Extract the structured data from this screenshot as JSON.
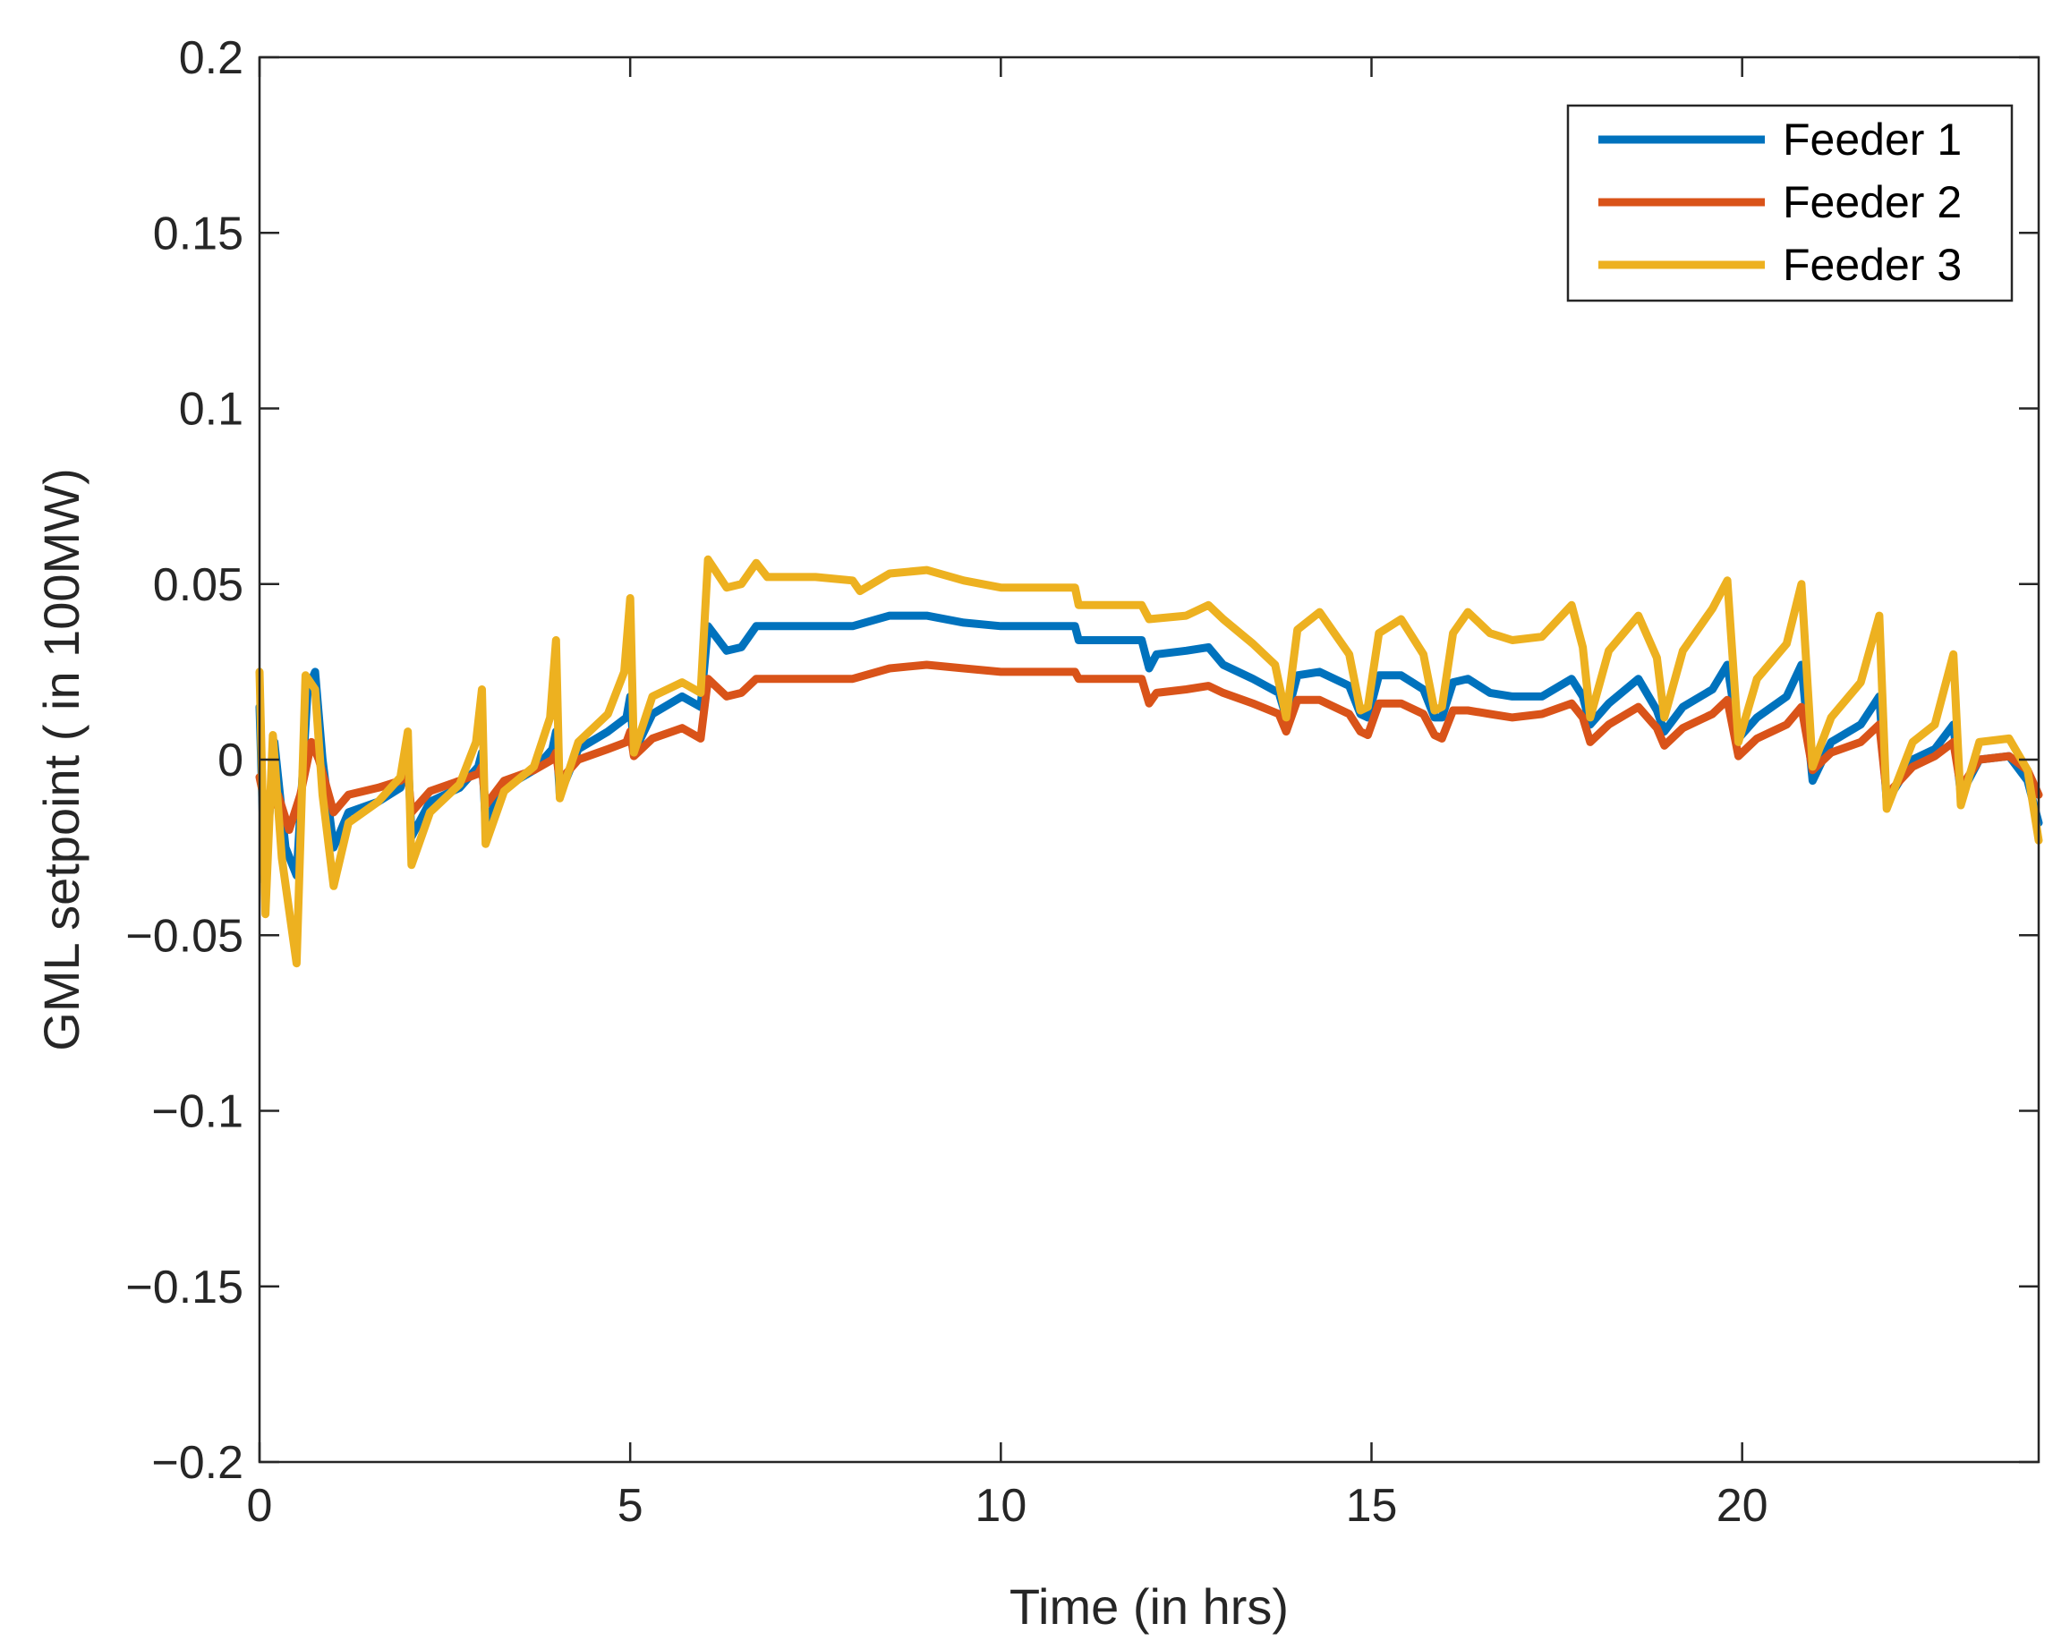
{
  "chart_data": {
    "type": "line",
    "title": "",
    "xlabel": "Time (in hrs)",
    "ylabel": "GML setpoint ( in 100MW)",
    "xlim": [
      0,
      24
    ],
    "ylim": [
      -0.2,
      0.2
    ],
    "xticks": [
      0,
      5,
      10,
      15,
      20
    ],
    "xtick_labels": [
      "0",
      "5",
      "10",
      "15",
      "20"
    ],
    "yticks": [
      0.2,
      0.15,
      0.1,
      0.05,
      0,
      -0.05,
      -0.1,
      -0.15,
      -0.2
    ],
    "ytick_labels": [
      "0.2",
      "0.15",
      "0.1",
      "0.05",
      "0",
      "−0.05",
      "−0.1",
      "−0.15",
      "−0.2"
    ],
    "grid": false,
    "legend_position": "top-right",
    "series": [
      {
        "name": "Feeder 1",
        "color": "#0072BD",
        "points": [
          [
            0,
            0.015
          ],
          [
            0.07,
            -0.035
          ],
          [
            0.2,
            0.005
          ],
          [
            0.35,
            -0.025
          ],
          [
            0.5,
            -0.033
          ],
          [
            0.65,
            0.02
          ],
          [
            0.75,
            0.025
          ],
          [
            0.85,
            0.0
          ],
          [
            1.0,
            -0.025
          ],
          [
            1.2,
            -0.015
          ],
          [
            1.6,
            -0.012
          ],
          [
            1.9,
            -0.008
          ],
          [
            2.0,
            0.002
          ],
          [
            2.05,
            -0.022
          ],
          [
            2.3,
            -0.012
          ],
          [
            2.7,
            -0.008
          ],
          [
            2.95,
            -0.002
          ],
          [
            3.0,
            0.002
          ],
          [
            3.05,
            -0.018
          ],
          [
            3.3,
            -0.008
          ],
          [
            3.7,
            -0.003
          ],
          [
            3.95,
            0.003
          ],
          [
            4.0,
            0.008
          ],
          [
            4.05,
            -0.01
          ],
          [
            4.3,
            0.003
          ],
          [
            4.7,
            0.008
          ],
          [
            4.95,
            0.012
          ],
          [
            5.0,
            0.018
          ],
          [
            5.05,
            0.002
          ],
          [
            5.3,
            0.013
          ],
          [
            5.7,
            0.018
          ],
          [
            5.95,
            0.015
          ],
          [
            6.05,
            0.038
          ],
          [
            6.3,
            0.031
          ],
          [
            6.5,
            0.032
          ],
          [
            6.7,
            0.038
          ],
          [
            7.5,
            0.038
          ],
          [
            8.0,
            0.038
          ],
          [
            8.5,
            0.041
          ],
          [
            9.0,
            0.041
          ],
          [
            9.5,
            0.039
          ],
          [
            10.0,
            0.038
          ],
          [
            11.0,
            0.038
          ],
          [
            11.05,
            0.034
          ],
          [
            11.9,
            0.034
          ],
          [
            12.0,
            0.026
          ],
          [
            12.1,
            0.03
          ],
          [
            12.5,
            0.031
          ],
          [
            12.8,
            0.032
          ],
          [
            13.0,
            0.027
          ],
          [
            13.4,
            0.023
          ],
          [
            13.75,
            0.019
          ],
          [
            13.85,
            0.012
          ],
          [
            14.0,
            0.024
          ],
          [
            14.3,
            0.025
          ],
          [
            14.7,
            0.021
          ],
          [
            14.85,
            0.013
          ],
          [
            14.95,
            0.012
          ],
          [
            15.1,
            0.024
          ],
          [
            15.4,
            0.024
          ],
          [
            15.7,
            0.02
          ],
          [
            15.85,
            0.012
          ],
          [
            15.95,
            0.012
          ],
          [
            16.1,
            0.022
          ],
          [
            16.3,
            0.023
          ],
          [
            16.6,
            0.019
          ],
          [
            16.9,
            0.018
          ],
          [
            17.3,
            0.018
          ],
          [
            17.7,
            0.023
          ],
          [
            17.85,
            0.018
          ],
          [
            17.95,
            0.01
          ],
          [
            18.2,
            0.016
          ],
          [
            18.6,
            0.023
          ],
          [
            18.85,
            0.014
          ],
          [
            18.95,
            0.008
          ],
          [
            19.2,
            0.015
          ],
          [
            19.6,
            0.02
          ],
          [
            19.8,
            0.027
          ],
          [
            19.95,
            0.006
          ],
          [
            20.2,
            0.012
          ],
          [
            20.6,
            0.018
          ],
          [
            20.8,
            0.027
          ],
          [
            20.95,
            -0.006
          ],
          [
            21.2,
            0.005
          ],
          [
            21.6,
            0.01
          ],
          [
            21.85,
            0.018
          ],
          [
            21.95,
            -0.012
          ],
          [
            22.3,
            0.0
          ],
          [
            22.6,
            0.003
          ],
          [
            22.85,
            0.01
          ],
          [
            22.95,
            -0.01
          ],
          [
            23.2,
            0.0
          ],
          [
            23.6,
            0.001
          ],
          [
            23.85,
            -0.006
          ],
          [
            24.0,
            -0.018
          ]
        ]
      },
      {
        "name": "Feeder 2",
        "color": "#D95319",
        "points": [
          [
            0,
            -0.005
          ],
          [
            0.1,
            -0.015
          ],
          [
            0.25,
            -0.01
          ],
          [
            0.4,
            -0.02
          ],
          [
            0.55,
            -0.01
          ],
          [
            0.7,
            0.005
          ],
          [
            0.8,
            0.0
          ],
          [
            1.0,
            -0.015
          ],
          [
            1.2,
            -0.01
          ],
          [
            1.6,
            -0.008
          ],
          [
            1.9,
            -0.006
          ],
          [
            2.0,
            -0.004
          ],
          [
            2.05,
            -0.015
          ],
          [
            2.3,
            -0.009
          ],
          [
            2.7,
            -0.006
          ],
          [
            2.95,
            -0.004
          ],
          [
            3.0,
            -0.002
          ],
          [
            3.05,
            -0.013
          ],
          [
            3.3,
            -0.006
          ],
          [
            3.7,
            -0.003
          ],
          [
            3.95,
            0.0
          ],
          [
            4.0,
            0.002
          ],
          [
            4.05,
            -0.006
          ],
          [
            4.3,
            0.0
          ],
          [
            4.7,
            0.003
          ],
          [
            4.95,
            0.005
          ],
          [
            5.0,
            0.008
          ],
          [
            5.05,
            0.001
          ],
          [
            5.3,
            0.006
          ],
          [
            5.7,
            0.009
          ],
          [
            5.95,
            0.006
          ],
          [
            6.05,
            0.023
          ],
          [
            6.3,
            0.018
          ],
          [
            6.5,
            0.019
          ],
          [
            6.7,
            0.023
          ],
          [
            7.5,
            0.023
          ],
          [
            8.0,
            0.023
          ],
          [
            8.5,
            0.026
          ],
          [
            9.0,
            0.027
          ],
          [
            9.5,
            0.026
          ],
          [
            10.0,
            0.025
          ],
          [
            11.0,
            0.025
          ],
          [
            11.05,
            0.023
          ],
          [
            11.9,
            0.023
          ],
          [
            12.0,
            0.016
          ],
          [
            12.1,
            0.019
          ],
          [
            12.5,
            0.02
          ],
          [
            12.8,
            0.021
          ],
          [
            13.0,
            0.019
          ],
          [
            13.4,
            0.016
          ],
          [
            13.75,
            0.013
          ],
          [
            13.85,
            0.008
          ],
          [
            14.0,
            0.017
          ],
          [
            14.3,
            0.017
          ],
          [
            14.7,
            0.013
          ],
          [
            14.85,
            0.008
          ],
          [
            14.95,
            0.007
          ],
          [
            15.1,
            0.016
          ],
          [
            15.4,
            0.016
          ],
          [
            15.7,
            0.013
          ],
          [
            15.85,
            0.007
          ],
          [
            15.95,
            0.006
          ],
          [
            16.1,
            0.014
          ],
          [
            16.3,
            0.014
          ],
          [
            16.6,
            0.013
          ],
          [
            16.9,
            0.012
          ],
          [
            17.3,
            0.013
          ],
          [
            17.7,
            0.016
          ],
          [
            17.85,
            0.012
          ],
          [
            17.95,
            0.005
          ],
          [
            18.2,
            0.01
          ],
          [
            18.6,
            0.015
          ],
          [
            18.85,
            0.009
          ],
          [
            18.95,
            0.004
          ],
          [
            19.2,
            0.009
          ],
          [
            19.6,
            0.013
          ],
          [
            19.8,
            0.017
          ],
          [
            19.95,
            0.001
          ],
          [
            20.2,
            0.006
          ],
          [
            20.6,
            0.01
          ],
          [
            20.8,
            0.015
          ],
          [
            20.95,
            -0.003
          ],
          [
            21.2,
            0.002
          ],
          [
            21.6,
            0.005
          ],
          [
            21.85,
            0.01
          ],
          [
            21.95,
            -0.01
          ],
          [
            22.3,
            -0.002
          ],
          [
            22.6,
            0.001
          ],
          [
            22.85,
            0.005
          ],
          [
            22.95,
            -0.008
          ],
          [
            23.2,
            0.0
          ],
          [
            23.6,
            0.001
          ],
          [
            23.85,
            -0.003
          ],
          [
            24.0,
            -0.01
          ]
        ]
      },
      {
        "name": "Feeder 3",
        "color": "#EDB120",
        "points": [
          [
            0,
            0.025
          ],
          [
            0.08,
            -0.044
          ],
          [
            0.18,
            0.007
          ],
          [
            0.3,
            -0.028
          ],
          [
            0.5,
            -0.058
          ],
          [
            0.62,
            0.024
          ],
          [
            0.75,
            0.02
          ],
          [
            0.85,
            -0.01
          ],
          [
            1.0,
            -0.036
          ],
          [
            1.2,
            -0.018
          ],
          [
            1.6,
            -0.012
          ],
          [
            1.9,
            -0.005
          ],
          [
            2.0,
            0.008
          ],
          [
            2.05,
            -0.03
          ],
          [
            2.3,
            -0.015
          ],
          [
            2.7,
            -0.007
          ],
          [
            2.92,
            0.005
          ],
          [
            3.0,
            0.02
          ],
          [
            3.05,
            -0.024
          ],
          [
            3.3,
            -0.009
          ],
          [
            3.7,
            -0.002
          ],
          [
            3.92,
            0.012
          ],
          [
            4.0,
            0.034
          ],
          [
            4.05,
            -0.011
          ],
          [
            4.3,
            0.005
          ],
          [
            4.7,
            0.013
          ],
          [
            4.92,
            0.025
          ],
          [
            5.0,
            0.046
          ],
          [
            5.05,
            0.002
          ],
          [
            5.3,
            0.018
          ],
          [
            5.7,
            0.022
          ],
          [
            5.95,
            0.019
          ],
          [
            6.05,
            0.057
          ],
          [
            6.3,
            0.049
          ],
          [
            6.5,
            0.05
          ],
          [
            6.7,
            0.056
          ],
          [
            6.85,
            0.052
          ],
          [
            7.5,
            0.052
          ],
          [
            8.0,
            0.051
          ],
          [
            8.1,
            0.048
          ],
          [
            8.5,
            0.053
          ],
          [
            9.0,
            0.054
          ],
          [
            9.5,
            0.051
          ],
          [
            10.0,
            0.049
          ],
          [
            11.0,
            0.049
          ],
          [
            11.05,
            0.044
          ],
          [
            11.9,
            0.044
          ],
          [
            12.0,
            0.04
          ],
          [
            12.5,
            0.041
          ],
          [
            12.8,
            0.044
          ],
          [
            13.0,
            0.04
          ],
          [
            13.4,
            0.033
          ],
          [
            13.7,
            0.027
          ],
          [
            13.85,
            0.012
          ],
          [
            14.0,
            0.037
          ],
          [
            14.3,
            0.042
          ],
          [
            14.7,
            0.03
          ],
          [
            14.85,
            0.014
          ],
          [
            14.95,
            0.015
          ],
          [
            15.1,
            0.036
          ],
          [
            15.4,
            0.04
          ],
          [
            15.7,
            0.03
          ],
          [
            15.85,
            0.014
          ],
          [
            15.95,
            0.015
          ],
          [
            16.1,
            0.036
          ],
          [
            16.3,
            0.042
          ],
          [
            16.6,
            0.036
          ],
          [
            16.9,
            0.034
          ],
          [
            17.3,
            0.035
          ],
          [
            17.7,
            0.044
          ],
          [
            17.85,
            0.032
          ],
          [
            17.95,
            0.012
          ],
          [
            18.2,
            0.031
          ],
          [
            18.6,
            0.041
          ],
          [
            18.85,
            0.029
          ],
          [
            18.95,
            0.012
          ],
          [
            19.2,
            0.031
          ],
          [
            19.6,
            0.043
          ],
          [
            19.8,
            0.051
          ],
          [
            19.95,
            0.005
          ],
          [
            20.2,
            0.023
          ],
          [
            20.6,
            0.033
          ],
          [
            20.8,
            0.05
          ],
          [
            20.95,
            -0.002
          ],
          [
            21.2,
            0.012
          ],
          [
            21.6,
            0.022
          ],
          [
            21.85,
            0.041
          ],
          [
            21.95,
            -0.014
          ],
          [
            22.3,
            0.005
          ],
          [
            22.6,
            0.01
          ],
          [
            22.85,
            0.03
          ],
          [
            22.95,
            -0.013
          ],
          [
            23.2,
            0.005
          ],
          [
            23.6,
            0.006
          ],
          [
            23.85,
            -0.003
          ],
          [
            24.0,
            -0.023
          ]
        ]
      }
    ]
  }
}
